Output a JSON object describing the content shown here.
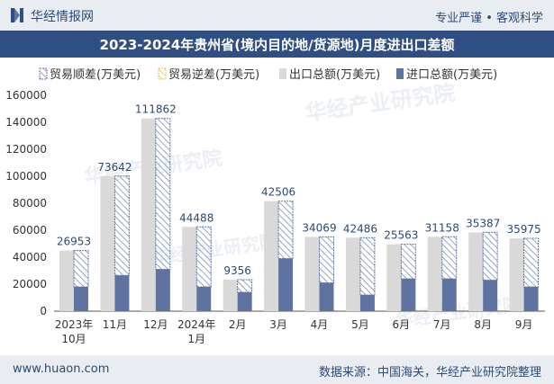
{
  "header": {
    "brand": "华经情报网",
    "slogan": "专业严谨 • 客观科学"
  },
  "title": "2023-2024年贵州省(境内目的地/货源地)月度进出口差额",
  "footer": {
    "website": "www.huaon.com",
    "source": "数据来源：中国海关，华经产业研究院整理"
  },
  "watermarks": [
    "华经产业研究院",
    "www.huaon.com"
  ],
  "colors": {
    "title_bg": "#2f4f83",
    "export_bar": "#d9d9d9",
    "import_bar": "#5f73a0",
    "surplus_border": "#5f73a0",
    "deficit_border": "#e3c86a",
    "label_text": "#2b4a77"
  },
  "chart_data": {
    "type": "bar",
    "categories": [
      [
        "2023年",
        "10月"
      ],
      [
        "11月"
      ],
      [
        "12月"
      ],
      [
        "2024年",
        "1月"
      ],
      [
        "2月"
      ],
      [
        "3月"
      ],
      [
        "4月"
      ],
      [
        "5月"
      ],
      [
        "6月"
      ],
      [
        "7月"
      ],
      [
        "8月"
      ],
      [
        "9月"
      ]
    ],
    "series": [
      {
        "name": "贸易顺差(万美元)",
        "values": [
          26953,
          73642,
          111862,
          44488,
          9356,
          42506,
          34069,
          42486,
          25563,
          31158,
          35387,
          35975
        ]
      },
      {
        "name": "贸易逆差(万美元)",
        "values": [
          0,
          0,
          0,
          0,
          0,
          0,
          0,
          0,
          0,
          0,
          0,
          0
        ]
      },
      {
        "name": "出口总额(万美元)",
        "values": [
          44953,
          100142,
          142862,
          62488,
          23356,
          81506,
          55069,
          54486,
          49563,
          55158,
          58387,
          53975
        ]
      },
      {
        "name": "进口总额(万美元)",
        "values": [
          18000,
          26500,
          31000,
          18000,
          14000,
          39000,
          21000,
          12000,
          24000,
          24000,
          23000,
          18000
        ]
      }
    ],
    "data_labels": [
      "26953",
      "73642",
      "111862",
      "44488",
      "9356",
      "42506",
      "34069",
      "42486",
      "25563",
      "31158",
      "35387",
      "35975"
    ],
    "yticks": [
      "0",
      "20000",
      "40000",
      "60000",
      "80000",
      "100000",
      "120000",
      "140000",
      "160000"
    ],
    "ylim": [
      0,
      160000
    ],
    "legend_position": "top-left",
    "grid": false
  }
}
